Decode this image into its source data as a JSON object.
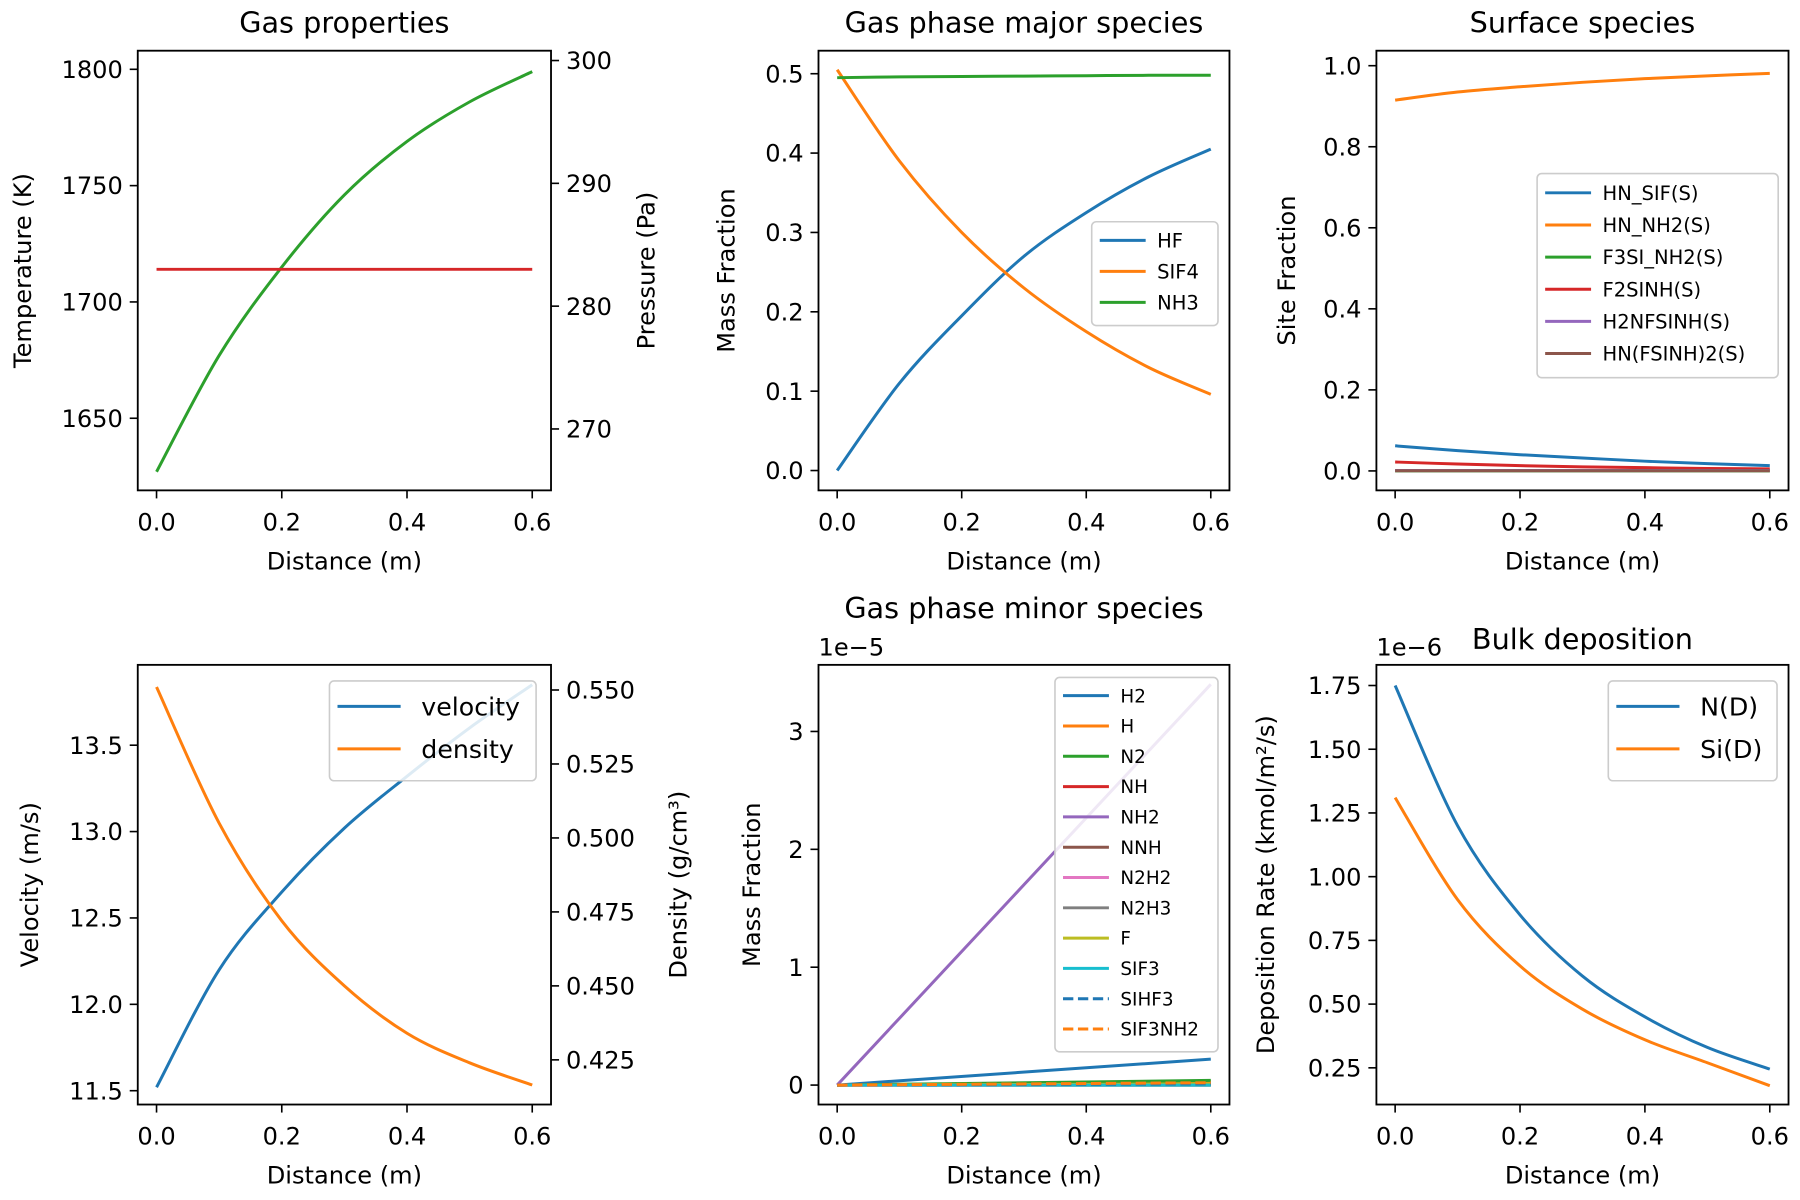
{
  "chart_data": [
    {
      "type": "line",
      "title": "Gas properties",
      "xlabel": "Distance (m)",
      "ylabel": "Temperature (K)",
      "y2label": "Pressure (Pa)",
      "xlim": [
        -0.03,
        0.63
      ],
      "ylim": [
        1619,
        1808
      ],
      "y2lim": [
        265.0,
        300.8
      ],
      "xticks": [
        "0.0",
        "0.2",
        "0.4",
        "0.6"
      ],
      "yticks": [
        "1650",
        "1700",
        "1750",
        "1800"
      ],
      "y2ticks": [
        "270",
        "280",
        "290",
        "300"
      ],
      "grid": false,
      "legend": "none",
      "series": [
        {
          "axis": "y",
          "color": "#2ca02c",
          "dash": false,
          "x": [
            0,
            0.1,
            0.2,
            0.3,
            0.4,
            0.5,
            0.6
          ],
          "y": [
            1627,
            1677,
            1715,
            1746,
            1769,
            1786,
            1799
          ]
        },
        {
          "axis": "y2",
          "color": "#d62728",
          "dash": false,
          "x": [
            0,
            0.1,
            0.2,
            0.3,
            0.4,
            0.5,
            0.6
          ],
          "y": [
            283,
            283,
            283,
            283,
            283,
            283,
            283
          ]
        }
      ]
    },
    {
      "type": "line",
      "title": "Gas phase major species",
      "xlabel": "Distance (m)",
      "ylabel": "Mass Fraction",
      "xlim": [
        -0.03,
        0.63
      ],
      "ylim": [
        -0.025,
        0.529
      ],
      "xticks": [
        "0.0",
        "0.2",
        "0.4",
        "0.6"
      ],
      "yticks": [
        "0.0",
        "0.1",
        "0.2",
        "0.3",
        "0.4",
        "0.5"
      ],
      "grid": false,
      "legend": "center-right",
      "series": [
        {
          "name": "HF",
          "axis": "y",
          "color": "#1f77b4",
          "dash": false,
          "x": [
            0,
            0.1,
            0.2,
            0.3,
            0.4,
            0.5,
            0.6
          ],
          "y": [
            0.0,
            0.11,
            0.195,
            0.27,
            0.325,
            0.37,
            0.405
          ]
        },
        {
          "name": "SIF4",
          "axis": "y",
          "color": "#ff7f0e",
          "dash": false,
          "x": [
            0,
            0.1,
            0.2,
            0.3,
            0.4,
            0.5,
            0.6
          ],
          "y": [
            0.505,
            0.39,
            0.3,
            0.23,
            0.175,
            0.13,
            0.096
          ]
        },
        {
          "name": "NH3",
          "axis": "y",
          "color": "#2ca02c",
          "dash": false,
          "x": [
            0,
            0.1,
            0.2,
            0.3,
            0.4,
            0.5,
            0.6
          ],
          "y": [
            0.495,
            0.496,
            0.4965,
            0.497,
            0.4975,
            0.498,
            0.498
          ]
        }
      ]
    },
    {
      "type": "line",
      "title": "Surface species",
      "xlabel": "Distance (m)",
      "ylabel": "Site Fraction",
      "xlim": [
        -0.03,
        0.63
      ],
      "ylim": [
        -0.048,
        1.037
      ],
      "xticks": [
        "0.0",
        "0.2",
        "0.4",
        "0.6"
      ],
      "yticks": [
        "0.0",
        "0.2",
        "0.4",
        "0.6",
        "0.8",
        "1.0"
      ],
      "grid": false,
      "legend": "center-right",
      "series": [
        {
          "name": "HN_SIF(S)",
          "axis": "y",
          "color": "#1f77b4",
          "dash": false,
          "x": [
            0,
            0.1,
            0.2,
            0.3,
            0.4,
            0.5,
            0.6
          ],
          "y": [
            0.062,
            0.05,
            0.04,
            0.032,
            0.024,
            0.018,
            0.013
          ]
        },
        {
          "name": "HN_NH2(S)",
          "axis": "y",
          "color": "#ff7f0e",
          "dash": false,
          "x": [
            0,
            0.1,
            0.2,
            0.3,
            0.4,
            0.5,
            0.6
          ],
          "y": [
            0.915,
            0.935,
            0.948,
            0.959,
            0.968,
            0.975,
            0.981
          ]
        },
        {
          "name": "F3SI_NH2(S)",
          "axis": "y",
          "color": "#2ca02c",
          "dash": false,
          "x": [
            0,
            0.1,
            0.2,
            0.3,
            0.4,
            0.5,
            0.6
          ],
          "y": [
            0,
            0,
            0,
            0,
            0,
            0,
            0
          ]
        },
        {
          "name": "F2SINH(S)",
          "axis": "y",
          "color": "#d62728",
          "dash": false,
          "x": [
            0,
            0.1,
            0.2,
            0.3,
            0.4,
            0.5,
            0.6
          ],
          "y": [
            0.022,
            0.017,
            0.013,
            0.01,
            0.008,
            0.006,
            0.005
          ]
        },
        {
          "name": "H2NFSINH(S)",
          "axis": "y",
          "color": "#9467bd",
          "dash": false,
          "x": [
            0,
            0.1,
            0.2,
            0.3,
            0.4,
            0.5,
            0.6
          ],
          "y": [
            0.001,
            0.001,
            0.001,
            0.001,
            0.001,
            0.001,
            0.001
          ]
        },
        {
          "name": "HN(FSINH)2(S)",
          "axis": "y",
          "color": "#8c564b",
          "dash": false,
          "x": [
            0,
            0.1,
            0.2,
            0.3,
            0.4,
            0.5,
            0.6
          ],
          "y": [
            0.0005,
            0.0005,
            0.0005,
            0.0005,
            0.0005,
            0.0005,
            0.0005
          ]
        }
      ]
    },
    {
      "type": "line",
      "title": "",
      "xlabel": "Distance (m)",
      "ylabel": "Velocity (m/s)",
      "y2label": "Density (g/cm³)",
      "xlim": [
        -0.03,
        0.63
      ],
      "ylim": [
        11.42,
        13.965
      ],
      "y2lim": [
        0.4099,
        0.5585
      ],
      "xticks": [
        "0.0",
        "0.2",
        "0.4",
        "0.6"
      ],
      "yticks": [
        "11.5",
        "12.0",
        "12.5",
        "13.0",
        "13.5"
      ],
      "y2ticks": [
        "0.425",
        "0.450",
        "0.475",
        "0.500",
        "0.525",
        "0.550"
      ],
      "grid": false,
      "legend": "upper-right",
      "series": [
        {
          "name": "velocity",
          "axis": "y",
          "color": "#1f77b4",
          "dash": false,
          "x": [
            0,
            0.1,
            0.2,
            0.3,
            0.4,
            0.5,
            0.6
          ],
          "y": [
            11.52,
            12.2,
            12.65,
            13.02,
            13.32,
            13.6,
            13.85
          ]
        },
        {
          "name": "density",
          "axis": "y2",
          "color": "#ff7f0e",
          "dash": false,
          "x": [
            0,
            0.1,
            0.2,
            0.3,
            0.4,
            0.5,
            0.6
          ],
          "y": [
            0.551,
            0.505,
            0.472,
            0.45,
            0.434,
            0.424,
            0.4165
          ]
        }
      ]
    },
    {
      "type": "line",
      "title": "Gas phase minor species",
      "xlabel": "Distance (m)",
      "ylabel": "Mass Fraction",
      "offset_text": "1e−5",
      "xlim": [
        -0.03,
        0.63
      ],
      "ylim": [
        -0.165,
        3.565
      ],
      "xticks": [
        "0.0",
        "0.2",
        "0.4",
        "0.6"
      ],
      "yticks": [
        "0",
        "1",
        "2",
        "3"
      ],
      "grid": false,
      "legend": "upper-right",
      "series": [
        {
          "name": "H2",
          "axis": "y",
          "color": "#1f77b4",
          "dash": false,
          "x": [
            0,
            0.6
          ],
          "y": [
            0,
            0.22
          ]
        },
        {
          "name": "H",
          "axis": "y",
          "color": "#ff7f0e",
          "dash": false,
          "x": [
            0,
            0.6
          ],
          "y": [
            0,
            0.03
          ]
        },
        {
          "name": "N2",
          "axis": "y",
          "color": "#2ca02c",
          "dash": false,
          "x": [
            0,
            0.6
          ],
          "y": [
            0,
            0.04
          ]
        },
        {
          "name": "NH",
          "axis": "y",
          "color": "#d62728",
          "dash": false,
          "x": [
            0,
            0.6
          ],
          "y": [
            0,
            0.005
          ]
        },
        {
          "name": "NH2",
          "axis": "y",
          "color": "#9467bd",
          "dash": false,
          "x": [
            0,
            0.6
          ],
          "y": [
            0,
            3.4
          ]
        },
        {
          "name": "NNH",
          "axis": "y",
          "color": "#8c564b",
          "dash": false,
          "x": [
            0,
            0.6
          ],
          "y": [
            0,
            0
          ]
        },
        {
          "name": "N2H2",
          "axis": "y",
          "color": "#e377c2",
          "dash": false,
          "x": [
            0,
            0.6
          ],
          "y": [
            0,
            0
          ]
        },
        {
          "name": "N2H3",
          "axis": "y",
          "color": "#7f7f7f",
          "dash": false,
          "x": [
            0,
            0.6
          ],
          "y": [
            0,
            0
          ]
        },
        {
          "name": "F",
          "axis": "y",
          "color": "#bcbd22",
          "dash": false,
          "x": [
            0,
            0.6
          ],
          "y": [
            0,
            0.01
          ]
        },
        {
          "name": "SIF3",
          "axis": "y",
          "color": "#17becf",
          "dash": false,
          "x": [
            0,
            0.6
          ],
          "y": [
            0,
            0
          ]
        },
        {
          "name": "SIHF3",
          "axis": "y",
          "color": "#1f77b4",
          "dash": true,
          "x": [
            0,
            0.6
          ],
          "y": [
            0,
            0.01
          ]
        },
        {
          "name": "SIF3NH2",
          "axis": "y",
          "color": "#ff7f0e",
          "dash": true,
          "x": [
            0,
            0.6
          ],
          "y": [
            0,
            0.02
          ]
        }
      ]
    },
    {
      "type": "line",
      "title": "Bulk deposition",
      "xlabel": "Distance (m)",
      "ylabel": "Deposition Rate (kmol/m²/s)",
      "offset_text": "1e−6",
      "xlim": [
        -0.03,
        0.63
      ],
      "ylim": [
        0.106,
        1.831
      ],
      "xticks": [
        "0.0",
        "0.2",
        "0.4",
        "0.6"
      ],
      "yticks": [
        "0.25",
        "0.50",
        "0.75",
        "1.00",
        "1.25",
        "1.50",
        "1.75"
      ],
      "grid": false,
      "legend": "upper-right",
      "series": [
        {
          "name": "N(D)",
          "axis": "y",
          "color": "#1f77b4",
          "dash": false,
          "x": [
            0,
            0.1,
            0.2,
            0.3,
            0.4,
            0.5,
            0.6
          ],
          "y": [
            1.75,
            1.2,
            0.85,
            0.61,
            0.45,
            0.33,
            0.245
          ]
        },
        {
          "name": "Si(D)",
          "axis": "y",
          "color": "#ff7f0e",
          "dash": false,
          "x": [
            0,
            0.1,
            0.2,
            0.3,
            0.4,
            0.5,
            0.6
          ],
          "y": [
            1.31,
            0.91,
            0.65,
            0.48,
            0.36,
            0.27,
            0.18
          ]
        }
      ]
    }
  ]
}
